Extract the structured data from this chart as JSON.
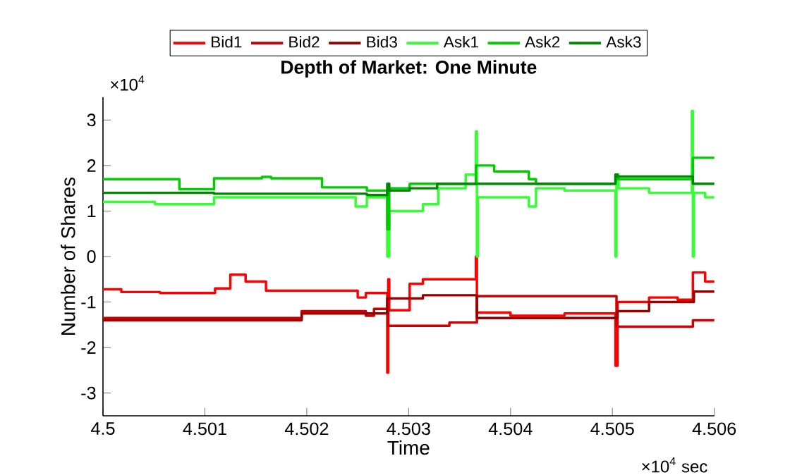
{
  "chart_data": {
    "type": "step",
    "title": "Depth of Market: One Minute",
    "xlabel": "Time",
    "ylabel": "Number of Shares",
    "annotations": [
      "×10$^{4}$",
      "×10$^{4}$ sec"
    ],
    "xlim": [
      4.5,
      4.506
    ],
    "xticks": [
      4.5,
      4.501,
      4.502,
      4.503,
      4.504,
      4.505,
      4.506
    ],
    "ylim": [
      -3.5,
      3.5
    ],
    "yticks": [
      -3,
      -2,
      -1,
      0,
      1,
      2,
      3
    ],
    "legend": "top",
    "grid": false,
    "series": [
      {
        "name": "Bid1",
        "color": "#ff0000",
        "x": [
          4.5,
          4.50018,
          4.50056,
          4.5011,
          4.50125,
          4.5014,
          4.5016,
          4.5025,
          4.50258,
          4.50279,
          4.5028,
          4.50281,
          4.50301,
          4.50314,
          4.50366,
          4.50367,
          4.504,
          4.50453,
          4.50503,
          4.50505,
          4.50536,
          4.50564,
          4.50579,
          4.50591,
          4.506
        ],
        "values": [
          -0.72,
          -0.78,
          -0.8,
          -0.7,
          -0.4,
          -0.55,
          -0.75,
          -0.9,
          -0.8,
          -2.55,
          -0.5,
          -1.18,
          -0.6,
          -0.5,
          0,
          -1.23,
          -1.3,
          -1.25,
          -2.4,
          -1.0,
          -0.9,
          -0.95,
          -0.35,
          -0.55,
          -0.55
        ]
      },
      {
        "name": "Bid2",
        "color": "#cc0000",
        "x": [
          4.5,
          4.50195,
          4.50258,
          4.50266,
          4.5028,
          4.5034,
          4.50367,
          4.50504,
          4.50579,
          4.506
        ],
        "values": [
          -1.35,
          -1.2,
          -1.3,
          -1.15,
          -1.52,
          -1.45,
          -0.87,
          -1.54,
          -1.4,
          -1.4
        ]
      },
      {
        "name": "Bid3",
        "color": "#990000",
        "x": [
          4.5,
          4.50195,
          4.50279,
          4.50314,
          4.50367,
          4.50505,
          4.50536,
          4.5058,
          4.506
        ],
        "values": [
          -1.4,
          -1.25,
          -0.92,
          -0.85,
          -1.35,
          -1.2,
          -1.0,
          -0.77,
          -0.77
        ]
      },
      {
        "name": "Ask1",
        "color": "#33ff33",
        "x": [
          4.5,
          4.50051,
          4.50109,
          4.50248,
          4.50259,
          4.50279,
          4.50281,
          4.50314,
          4.50329,
          4.50356,
          4.50366,
          4.50367,
          4.50368,
          4.50418,
          4.50425,
          4.50453,
          4.50503,
          4.50504,
          4.50506,
          4.50536,
          4.50578,
          4.50579,
          4.5058,
          4.50591,
          4.506
        ],
        "values": [
          1.2,
          1.15,
          1.3,
          1.1,
          1.3,
          0,
          1.0,
          1.15,
          1.5,
          1.8,
          2.75,
          0,
          1.3,
          1.1,
          1.5,
          1.45,
          0,
          1.8,
          1.5,
          1.4,
          3.2,
          0,
          1.4,
          1.3,
          1.3
        ]
      },
      {
        "name": "Ask2",
        "color": "#00cc00",
        "x": [
          4.5,
          4.50075,
          4.50109,
          4.50156,
          4.50165,
          4.50215,
          4.50259,
          4.50279,
          4.50281,
          4.50301,
          4.50366,
          4.50384,
          4.50418,
          4.50425,
          4.50503,
          4.50505,
          4.50579,
          4.506
        ],
        "values": [
          1.7,
          1.48,
          1.72,
          1.75,
          1.72,
          1.52,
          1.45,
          0.6,
          1.5,
          1.6,
          2.0,
          1.87,
          1.7,
          1.6,
          1.8,
          1.7,
          2.17,
          2.17
        ]
      },
      {
        "name": "Ask3",
        "color": "#008800",
        "x": [
          4.5,
          4.50109,
          4.50259,
          4.50279,
          4.50281,
          4.50301,
          4.50328,
          4.50503,
          4.50505,
          4.50579,
          4.506
        ],
        "values": [
          1.4,
          1.38,
          1.35,
          1.6,
          1.45,
          1.5,
          1.6,
          1.8,
          1.76,
          1.6,
          1.6
        ]
      }
    ]
  }
}
